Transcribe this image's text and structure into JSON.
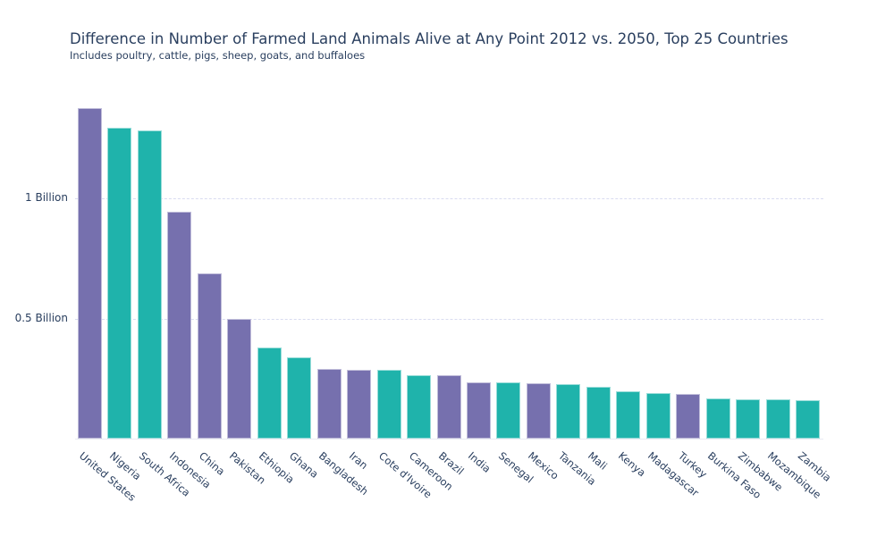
{
  "chart_data": {
    "type": "bar",
    "title": "Difference in Number of Farmed Land Animals Alive at Any Point 2012 vs. 2050, Top 25 Countries",
    "subtitle": "Includes poultry, cattle, pigs, sheep, goats, and buffaloes",
    "unit": "billions of animals",
    "categories": [
      "United States",
      "Nigeria",
      "South Africa",
      "Indonesia",
      "China",
      "Pakistan",
      "Ethiopia",
      "Ghana",
      "Bangladesh",
      "Iran",
      "Cote d'Ivoire",
      "Cameroon",
      "Brazil",
      "India",
      "Senegal",
      "Mexico",
      "Tanzania",
      "Mali",
      "Kenya",
      "Madagascar",
      "Turkey",
      "Burkina Faso",
      "Zimbabwe",
      "Mozambique",
      "Zambia"
    ],
    "values": [
      1.376,
      1.292,
      1.284,
      0.944,
      0.686,
      0.5,
      0.379,
      0.337,
      0.291,
      0.287,
      0.286,
      0.264,
      0.263,
      0.236,
      0.235,
      0.23,
      0.225,
      0.216,
      0.198,
      0.188,
      0.186,
      0.166,
      0.165,
      0.164,
      0.161
    ],
    "bar_colors": [
      "#7670AE",
      "#1FB3AB",
      "#1FB3AB",
      "#7670AE",
      "#7670AE",
      "#7670AE",
      "#1FB3AB",
      "#1FB3AB",
      "#7670AE",
      "#7670AE",
      "#1FB3AB",
      "#1FB3AB",
      "#7670AE",
      "#7670AE",
      "#1FB3AB",
      "#7670AE",
      "#1FB3AB",
      "#1FB3AB",
      "#1FB3AB",
      "#1FB3AB",
      "#7670AE",
      "#1FB3AB",
      "#1FB3AB",
      "#1FB3AB",
      "#1FB3AB"
    ],
    "palette": {
      "purple": "#7670AE",
      "teal": "#1FB3AB"
    },
    "text_color": "#2a3f5f",
    "gridline_color": "#d9dcf0",
    "y_ticks": [
      {
        "value": 0.5,
        "label": "0.5 Billion"
      },
      {
        "value": 1.0,
        "label": "1 Billion"
      }
    ],
    "ylim": [
      0,
      1.46
    ],
    "x_tick_angle_deg": 40,
    "grid": "horizontal-dashed",
    "legend": "none"
  }
}
